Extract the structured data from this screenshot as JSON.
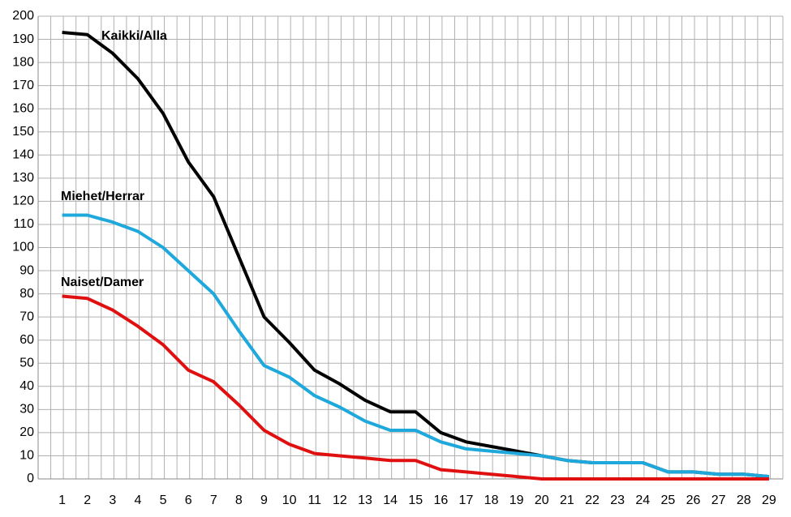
{
  "chart_data": {
    "type": "line",
    "categories": [
      "1",
      "2",
      "3",
      "4",
      "5",
      "6",
      "7",
      "8",
      "9",
      "10",
      "11",
      "12",
      "13",
      "14",
      "15",
      "16",
      "17",
      "18",
      "19",
      "20",
      "21",
      "22",
      "23",
      "24",
      "25",
      "26",
      "27",
      "28",
      "29"
    ],
    "series": [
      {
        "name": "Kaikki/Alla",
        "color": "#000000",
        "values": [
          193,
          192,
          184,
          173,
          158,
          137,
          122,
          96,
          70,
          59,
          47,
          41,
          34,
          29,
          29,
          20,
          16,
          14,
          12,
          10,
          8,
          7,
          7,
          7,
          3,
          3,
          2,
          2,
          1
        ]
      },
      {
        "name": "Miehet/Herrar",
        "color": "#1fa8dc",
        "values": [
          114,
          114,
          111,
          107,
          100,
          90,
          80,
          64,
          49,
          44,
          36,
          31,
          25,
          21,
          21,
          16,
          13,
          12,
          11,
          10,
          8,
          7,
          7,
          7,
          3,
          3,
          2,
          2,
          1
        ]
      },
      {
        "name": "Naiset/Damer",
        "color": "#e01010",
        "values": [
          79,
          78,
          73,
          66,
          58,
          47,
          42,
          32,
          21,
          15,
          11,
          10,
          9,
          8,
          8,
          4,
          3,
          2,
          1,
          0,
          0,
          0,
          0,
          0,
          0,
          0,
          0,
          0,
          0
        ]
      }
    ],
    "ylim": [
      0,
      200
    ],
    "yticks": [
      0,
      10,
      20,
      30,
      40,
      50,
      60,
      70,
      80,
      90,
      100,
      110,
      120,
      130,
      140,
      150,
      160,
      170,
      180,
      190,
      200
    ],
    "grid": true
  }
}
